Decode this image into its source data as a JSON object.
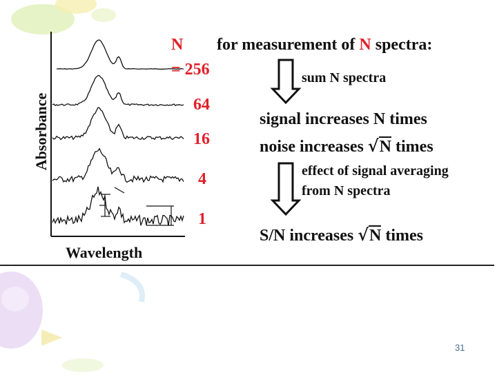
{
  "figure": {
    "y_label": "Absorbance",
    "x_label": "Wavelength",
    "n_title": "N",
    "n_values": [
      "= 256",
      "64",
      "16",
      "4",
      "1"
    ]
  },
  "flow": {
    "heading_pre": "for measurement of ",
    "heading_n": "N",
    "heading_post": " spectra:",
    "step1": "sum N spectra",
    "result_signal": "signal increases N times",
    "noise_pre": "noise increases ",
    "noise_root": "N",
    "noise_post": " times",
    "step2_line1": "effect of signal averaging",
    "step2_line2": "from N spectra",
    "sn_pre": "S/N increases ",
    "sn_root": "N",
    "sn_post": " times"
  },
  "footer": {
    "page_number": "31"
  },
  "colors": {
    "accent_red": "#e0202a",
    "text": "#111111",
    "page_number": "#4a6a8a"
  }
}
